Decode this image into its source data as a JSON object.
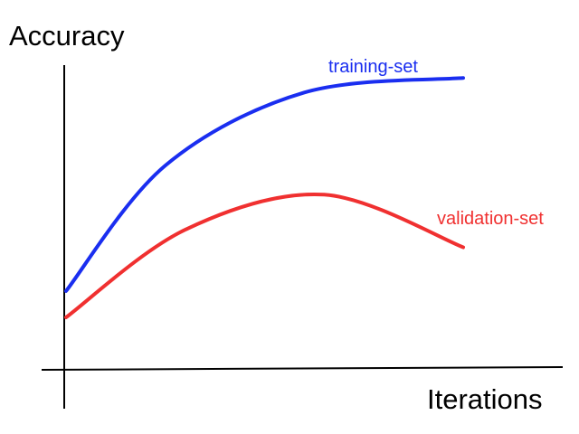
{
  "chart_data": {
    "type": "line",
    "title": "",
    "xlabel": "Iterations",
    "ylabel": "Accuracy",
    "grid": false,
    "axis_ticks": false,
    "legend": "inline labels next to curves",
    "xlim": [
      0,
      1
    ],
    "ylim": [
      0,
      1
    ],
    "series": [
      {
        "name": "training-set",
        "color": "#1a2ef0",
        "points": [
          [
            0.0,
            0.22
          ],
          [
            0.25,
            0.65
          ],
          [
            0.6,
            0.9
          ],
          [
            1.0,
            0.95
          ]
        ]
      },
      {
        "name": "validation-set",
        "color": "#f03030",
        "points": [
          [
            0.0,
            0.13
          ],
          [
            0.3,
            0.43
          ],
          [
            0.65,
            0.55
          ],
          [
            1.0,
            0.37
          ]
        ]
      }
    ]
  }
}
